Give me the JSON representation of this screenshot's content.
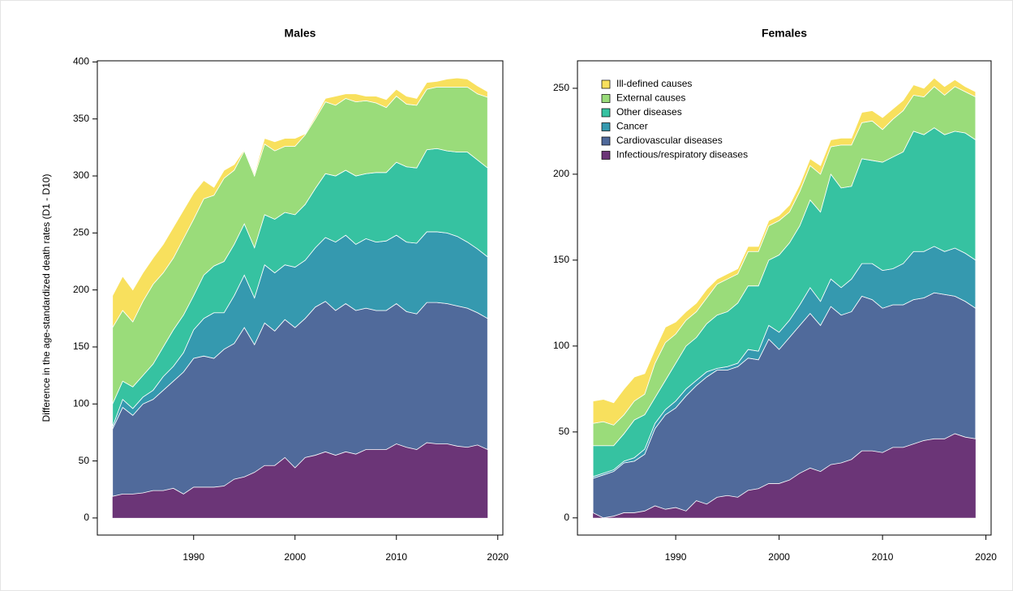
{
  "chart_data": [
    {
      "type": "stacked-area",
      "title": "Males",
      "y_label": "Difference in the age-standardized death rates (D1 - D10)",
      "x": [
        1982,
        1983,
        1984,
        1985,
        1986,
        1987,
        1988,
        1989,
        1990,
        1991,
        1992,
        1993,
        1994,
        1995,
        1996,
        1997,
        1998,
        1999,
        2000,
        2001,
        2002,
        2003,
        2004,
        2005,
        2006,
        2007,
        2008,
        2009,
        2010,
        2011,
        2012,
        2013,
        2014,
        2015,
        2016,
        2017,
        2018,
        2019
      ],
      "xlim": [
        1980.5,
        2020.5
      ],
      "xticks": [
        1990,
        2000,
        2010,
        2020
      ],
      "ylim": [
        -15,
        401
      ],
      "yticks": [
        0,
        50,
        100,
        150,
        200,
        250,
        300,
        350,
        400
      ],
      "series": [
        {
          "color": "#6b3577",
          "values": [
            19,
            21,
            21,
            22,
            24,
            24,
            26,
            21,
            27,
            27,
            27,
            28,
            34,
            36,
            40,
            46,
            46,
            53,
            44,
            53,
            55,
            58,
            55,
            58,
            56,
            60,
            60,
            60,
            65,
            62,
            60,
            66,
            65,
            65,
            63,
            62,
            64,
            60
          ]
        },
        {
          "color": "#506a9b",
          "values": [
            59,
            76,
            69,
            78,
            80,
            88,
            94,
            107,
            113,
            115,
            113,
            120,
            119,
            131,
            112,
            125,
            118,
            121,
            123,
            122,
            130,
            132,
            127,
            130,
            126,
            124,
            122,
            122,
            123,
            119,
            119,
            123,
            124,
            123,
            123,
            122,
            116,
            115
          ]
        },
        {
          "color": "#3599af",
          "values": [
            2,
            7,
            6,
            6,
            8,
            12,
            13,
            17,
            25,
            33,
            40,
            32,
            42,
            46,
            41,
            51,
            51,
            48,
            53,
            51,
            52,
            56,
            60,
            60,
            58,
            61,
            60,
            61,
            60,
            61,
            62,
            62,
            62,
            62,
            61,
            58,
            56,
            54
          ]
        },
        {
          "color": "#36c2a1",
          "values": [
            20,
            16,
            19,
            19,
            23,
            26,
            32,
            33,
            30,
            38,
            41,
            45,
            45,
            45,
            44,
            44,
            47,
            46,
            46,
            49,
            52,
            56,
            58,
            57,
            60,
            57,
            61,
            60,
            64,
            66,
            66,
            72,
            73,
            72,
            74,
            79,
            78,
            78
          ]
        },
        {
          "color": "#9adc7a",
          "values": [
            67,
            62,
            57,
            65,
            70,
            65,
            63,
            67,
            67,
            67,
            62,
            73,
            65,
            64,
            63,
            62,
            60,
            58,
            60,
            61,
            61,
            63,
            62,
            63,
            65,
            64,
            61,
            57,
            58,
            55,
            55,
            53,
            54,
            56,
            57,
            57,
            58,
            62
          ]
        },
        {
          "color": "#f8e05d",
          "values": [
            28,
            30,
            28,
            25,
            23,
            25,
            27,
            25,
            23,
            16,
            7,
            7,
            5,
            1,
            2,
            5,
            8,
            7,
            7,
            1,
            2,
            3,
            8,
            4,
            7,
            4,
            6,
            7,
            6,
            7,
            6,
            6,
            5,
            7,
            8,
            7,
            7,
            5
          ]
        }
      ]
    },
    {
      "type": "stacked-area",
      "title": "Females",
      "legend": "topleft",
      "x": [
        1982,
        1983,
        1984,
        1985,
        1986,
        1987,
        1988,
        1989,
        1990,
        1991,
        1992,
        1993,
        1994,
        1995,
        1996,
        1997,
        1998,
        1999,
        2000,
        2001,
        2002,
        2003,
        2004,
        2005,
        2006,
        2007,
        2008,
        2009,
        2010,
        2011,
        2012,
        2013,
        2014,
        2015,
        2016,
        2017,
        2018,
        2019
      ],
      "xlim": [
        1980.5,
        2020.5
      ],
      "xticks": [
        1990,
        2000,
        2010,
        2020
      ],
      "ylim": [
        -10,
        266
      ],
      "yticks": [
        0,
        50,
        100,
        150,
        200,
        250
      ],
      "series": [
        {
          "name": "Infectious/respiratory diseases",
          "color": "#6b3577",
          "values": [
            3,
            0,
            1,
            3,
            3,
            4,
            7,
            5,
            6,
            4,
            10,
            8,
            12,
            13,
            12,
            16,
            17,
            20,
            20,
            22,
            26,
            29,
            27,
            31,
            32,
            34,
            39,
            39,
            38,
            41,
            41,
            43,
            45,
            46,
            46,
            49,
            47,
            46
          ]
        },
        {
          "name": "Cardiovascular diseases",
          "color": "#506a9b",
          "values": [
            20,
            25,
            26,
            29,
            30,
            33,
            45,
            55,
            58,
            67,
            67,
            74,
            74,
            73,
            76,
            77,
            75,
            84,
            78,
            83,
            86,
            90,
            85,
            92,
            86,
            86,
            90,
            88,
            84,
            83,
            83,
            84,
            83,
            85,
            84,
            80,
            79,
            76
          ]
        },
        {
          "name": "Cancer",
          "color": "#3599af",
          "values": [
            1,
            1,
            1,
            1,
            2,
            3,
            3,
            3,
            4,
            4,
            3,
            3,
            1,
            2,
            2,
            5,
            5,
            8,
            10,
            10,
            12,
            15,
            14,
            16,
            16,
            19,
            19,
            21,
            22,
            21,
            24,
            28,
            27,
            27,
            25,
            28,
            28,
            28
          ]
        },
        {
          "name": "Other diseases",
          "color": "#36c2a1",
          "values": [
            18,
            16,
            14,
            16,
            22,
            20,
            15,
            17,
            22,
            25,
            25,
            28,
            31,
            32,
            35,
            37,
            38,
            38,
            45,
            45,
            46,
            51,
            52,
            61,
            58,
            54,
            61,
            60,
            63,
            65,
            65,
            70,
            68,
            69,
            68,
            68,
            70,
            70
          ]
        },
        {
          "name": "External causes",
          "color": "#9adc7a",
          "values": [
            13,
            14,
            12,
            11,
            11,
            12,
            20,
            22,
            17,
            15,
            15,
            15,
            18,
            19,
            17,
            20,
            20,
            20,
            20,
            18,
            20,
            20,
            22,
            16,
            25,
            24,
            21,
            23,
            19,
            22,
            24,
            21,
            22,
            24,
            23,
            26,
            24,
            25
          ]
        },
        {
          "name": "Ill-defined causes",
          "color": "#f8e05d",
          "values": [
            13,
            13,
            13,
            15,
            14,
            12,
            8,
            9,
            7,
            5,
            5,
            5,
            3,
            3,
            3,
            3,
            3,
            3,
            3,
            4,
            4,
            4,
            5,
            4,
            4,
            4,
            6,
            6,
            7,
            6,
            6,
            6,
            5,
            5,
            5,
            4,
            3,
            3
          ]
        }
      ]
    }
  ]
}
